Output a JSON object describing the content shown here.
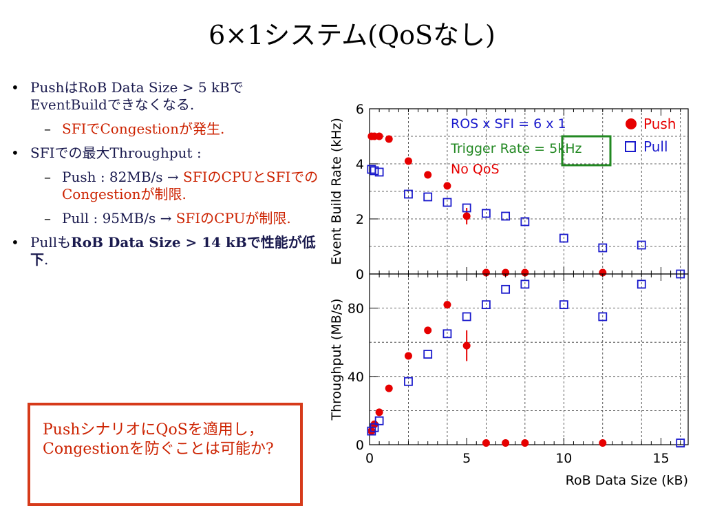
{
  "slide": {
    "title": "6×1システム(QoSなし)",
    "bullets": [
      {
        "text": "PushはRoB Data Size > 5 kBでEventBuildできなくなる."
      },
      {
        "sub": true,
        "text_red": "SFIでCongestionが発生."
      },
      {
        "text": "SFIでの最大Throughput :"
      },
      {
        "sub": true,
        "text": "Push : 82MB/s  → ",
        "text_red": "SFIのCPUとSFIでのCongestionが制限."
      },
      {
        "sub": true,
        "text": "Pull :  95MB/s → ",
        "text_red": "SFIのCPUが制限."
      },
      {
        "text": "Pullも",
        "text_bold": "RoB Data Size > 14 kBで性能が低下",
        "text_tail": "."
      }
    ],
    "question_box": "PushシナリオにQoSを適用し，Congestionを防ぐことは可能か?"
  },
  "colors": {
    "push": "#e60000",
    "pull": "#1a1acc",
    "trigger": "#228822",
    "box": "#d63a1a"
  },
  "chart_data": [
    {
      "type": "scatter",
      "ylabel": "Event Build Rate (kHz)",
      "ylim": [
        0,
        6
      ],
      "yticks": [
        0,
        2,
        4,
        6
      ],
      "xlim": [
        0,
        16.4
      ],
      "grid": true,
      "annotations": [
        "ROS x SFI = 6 x 1",
        "Trigger Rate = 5kHz",
        "No QoS"
      ],
      "legend": {
        "position": "top-right",
        "entries": [
          "Push",
          "Pull"
        ]
      },
      "series": [
        {
          "name": "Push",
          "x": [
            0.1,
            0.25,
            0.5,
            1,
            2,
            3,
            4,
            5,
            6,
            7,
            8,
            12
          ],
          "y": [
            5.0,
            5.0,
            5.0,
            4.9,
            4.1,
            3.6,
            3.2,
            2.1,
            0.05,
            0.05,
            0.05,
            0.05
          ],
          "err": [
            0,
            0,
            0,
            0,
            0,
            0,
            0,
            0.3,
            0,
            0,
            0,
            0
          ]
        },
        {
          "name": "Pull",
          "x": [
            0.1,
            0.25,
            0.5,
            2,
            3,
            4,
            5,
            6,
            7,
            8,
            10,
            12,
            14,
            16
          ],
          "y": [
            3.8,
            3.75,
            3.7,
            2.9,
            2.8,
            2.6,
            2.4,
            2.2,
            2.1,
            1.9,
            1.3,
            0.95,
            1.05,
            0.0
          ]
        }
      ]
    },
    {
      "type": "scatter",
      "ylabel": "Throughput (MB/s)",
      "xlabel": "RoB Data Size (kB)",
      "ylim": [
        0,
        100
      ],
      "yticks": [
        0,
        40,
        80
      ],
      "xlim": [
        0,
        16.4
      ],
      "xticks": [
        0,
        5,
        10,
        15
      ],
      "grid": true,
      "series": [
        {
          "name": "Push",
          "x": [
            0.1,
            0.25,
            0.5,
            1,
            2,
            3,
            4,
            5,
            6,
            7,
            8,
            12
          ],
          "y": [
            8,
            12,
            19,
            33,
            52,
            67,
            82,
            58,
            1,
            1,
            1,
            1
          ],
          "err": [
            0,
            0,
            0,
            0,
            0,
            0,
            0,
            9,
            0,
            0,
            0,
            0
          ]
        },
        {
          "name": "Pull",
          "x": [
            0.1,
            0.25,
            0.5,
            2,
            3,
            4,
            5,
            6,
            7,
            8,
            10,
            12,
            14,
            16
          ],
          "y": [
            8,
            10,
            14,
            37,
            53,
            65,
            75,
            82,
            91,
            94,
            82,
            75,
            94,
            1
          ]
        }
      ]
    }
  ]
}
